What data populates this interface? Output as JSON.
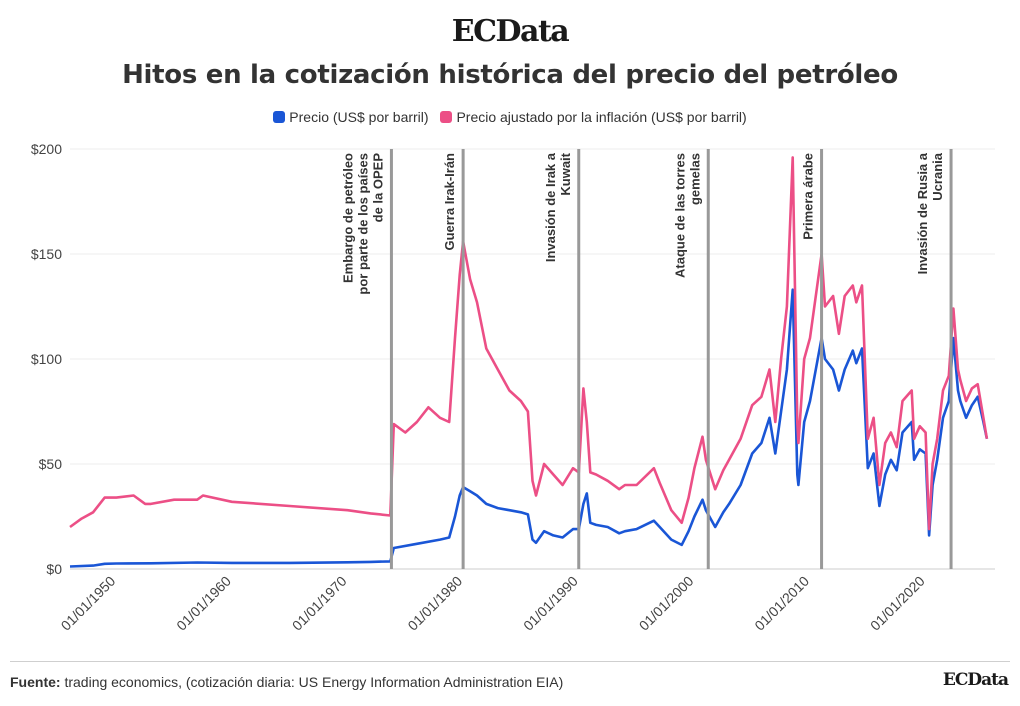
{
  "brand": {
    "logo": "ECData",
    "footer_logo": "ECData"
  },
  "title": "Hitos en la cotización histórica del precio del petróleo",
  "legend": [
    {
      "label": "Precio (US$ por barril)",
      "color": "#1a56d6"
    },
    {
      "label": "Precio ajustado por la inflación (US$ por barril)",
      "color": "#ec4f86"
    }
  ],
  "source": {
    "label": "Fuente:",
    "text": "trading economics, (cotización diaria: US Energy Information Administration EIA)"
  },
  "chart_data": {
    "type": "line",
    "xlabel": "",
    "ylabel": "",
    "xlim": [
      1946.0,
      2026.0
    ],
    "ylim": [
      0,
      200
    ],
    "grid": true,
    "legend_position": "top",
    "y_ticks": [
      0,
      50,
      100,
      150,
      200
    ],
    "y_tick_labels": [
      "$0",
      "$50",
      "$100",
      "$150",
      "$200"
    ],
    "x_ticks": [
      1950,
      1960,
      1970,
      1980,
      1990,
      2000,
      2010,
      2020
    ],
    "x_tick_labels": [
      "01/01/1950",
      "01/01/1960",
      "01/01/1970",
      "01/01/1980",
      "01/01/1990",
      "01/01/2000",
      "01/01/2010",
      "01/01/2020"
    ],
    "events": [
      {
        "x": 1973.8,
        "lines": [
          "Embargo de petróleo",
          "por parte de los países",
          "de la OPEP"
        ]
      },
      {
        "x": 1980.0,
        "lines": [
          "Guerra Irak-Irán"
        ]
      },
      {
        "x": 1990.0,
        "lines": [
          "Invasión de Irak a",
          "Kuwait"
        ]
      },
      {
        "x": 2001.2,
        "lines": [
          "Ataque de las torres",
          "gemelas"
        ]
      },
      {
        "x": 2011.0,
        "lines": [
          "Primera árabe"
        ]
      },
      {
        "x": 2022.2,
        "lines": [
          "Invasión de Rusia a",
          "Ucrania"
        ]
      }
    ],
    "series": [
      {
        "name": "Precio (US$ por barril)",
        "color": "#1a56d6",
        "x": [
          1946.0,
          1948.0,
          1949.0,
          1950.0,
          1953.0,
          1957.0,
          1960.0,
          1965.0,
          1970.0,
          1972.0,
          1973.7,
          1974.0,
          1976.0,
          1978.0,
          1978.8,
          1979.3,
          1979.7,
          1980.0,
          1980.6,
          1981.2,
          1982.0,
          1983.0,
          1984.0,
          1985.0,
          1985.6,
          1986.0,
          1986.3,
          1987.0,
          1987.8,
          1988.6,
          1989.5,
          1990.0,
          1990.4,
          1990.7,
          1991.0,
          1991.5,
          1992.5,
          1993.5,
          1994.0,
          1995.0,
          1996.5,
          1997.0,
          1998.0,
          1998.9,
          1999.5,
          2000.0,
          2000.7,
          2001.0,
          2001.8,
          2002.5,
          2003.0,
          2004.0,
          2005.0,
          2005.8,
          2006.5,
          2007.0,
          2007.5,
          2008.0,
          2008.5,
          2008.9,
          2009.0,
          2009.5,
          2010.0,
          2011.0,
          2011.3,
          2012.0,
          2012.5,
          2013.0,
          2013.7,
          2014.0,
          2014.5,
          2015.0,
          2015.5,
          2016.0,
          2016.5,
          2017.0,
          2017.5,
          2018.0,
          2018.8,
          2019.0,
          2019.5,
          2020.0,
          2020.3,
          2020.6,
          2021.0,
          2021.5,
          2022.0,
          2022.4,
          2022.8,
          2023.0,
          2023.5,
          2024.0,
          2024.5,
          2025.0,
          2025.3
        ],
        "y": [
          1.2,
          1.6,
          2.5,
          2.6,
          2.7,
          3.1,
          2.9,
          2.9,
          3.2,
          3.4,
          3.6,
          10.0,
          12.0,
          14.0,
          15.0,
          25.0,
          35.0,
          39.0,
          37.0,
          35.0,
          31.0,
          29.0,
          28.0,
          27.0,
          26.0,
          14.0,
          12.5,
          18.0,
          16.0,
          15.0,
          19.0,
          19.0,
          31.0,
          36.0,
          22.0,
          21.0,
          20.0,
          17.0,
          18.0,
          19.0,
          23.0,
          20.0,
          14.0,
          11.5,
          18.0,
          25.0,
          33.0,
          28.0,
          20.0,
          27.0,
          31.0,
          40.0,
          55.0,
          60.0,
          72.0,
          55.0,
          75.0,
          95.0,
          133.0,
          45.0,
          40.0,
          70.0,
          80.0,
          110.0,
          100.0,
          95.0,
          85.0,
          95.0,
          104.0,
          98.0,
          105.0,
          48.0,
          55.0,
          30.0,
          45.0,
          52.0,
          47.0,
          65.0,
          70.0,
          52.0,
          57.0,
          55.0,
          16.0,
          40.0,
          52.0,
          72.0,
          80.0,
          110.0,
          85.0,
          80.0,
          72.0,
          78.0,
          82.0,
          70.0,
          62.0
        ]
      },
      {
        "name": "Precio ajustado por la inflación (US$ por barril)",
        "color": "#ec4f86",
        "x": [
          1946.0,
          1947.0,
          1948.0,
          1949.0,
          1950.0,
          1951.5,
          1952.5,
          1953.0,
          1955.0,
          1957.0,
          1957.5,
          1960.0,
          1965.0,
          1970.0,
          1972.0,
          1973.7,
          1974.0,
          1975.0,
          1976.0,
          1977.0,
          1978.0,
          1978.8,
          1979.3,
          1979.7,
          1980.0,
          1980.6,
          1981.2,
          1982.0,
          1983.0,
          1984.0,
          1985.0,
          1985.6,
          1986.0,
          1986.3,
          1987.0,
          1987.8,
          1988.6,
          1989.5,
          1990.0,
          1990.4,
          1990.7,
          1991.0,
          1991.5,
          1992.5,
          1993.5,
          1994.0,
          1995.0,
          1996.5,
          1997.0,
          1998.0,
          1998.9,
          1999.5,
          2000.0,
          2000.7,
          2001.0,
          2001.8,
          2002.5,
          2003.0,
          2004.0,
          2005.0,
          2005.8,
          2006.5,
          2007.0,
          2007.5,
          2008.0,
          2008.5,
          2008.9,
          2009.0,
          2009.5,
          2010.0,
          2011.0,
          2011.3,
          2012.0,
          2012.5,
          2013.0,
          2013.7,
          2014.0,
          2014.5,
          2015.0,
          2015.5,
          2016.0,
          2016.5,
          2017.0,
          2017.5,
          2018.0,
          2018.8,
          2019.0,
          2019.5,
          2020.0,
          2020.3,
          2020.6,
          2021.0,
          2021.5,
          2022.0,
          2022.4,
          2022.8,
          2023.0,
          2023.5,
          2024.0,
          2024.5,
          2025.0,
          2025.3
        ],
        "y": [
          20.0,
          24.0,
          27.0,
          34.0,
          34.0,
          35.0,
          31.0,
          31.0,
          33.0,
          33.0,
          35.0,
          32.0,
          30.0,
          28.0,
          26.5,
          25.5,
          69.0,
          65.0,
          70.0,
          77.0,
          72.0,
          70.0,
          110.0,
          140.0,
          156.0,
          138.0,
          127.0,
          105.0,
          95.0,
          85.0,
          80.0,
          75.0,
          42.0,
          35.0,
          50.0,
          45.0,
          40.0,
          48.0,
          46.0,
          86.0,
          70.0,
          46.0,
          45.0,
          42.0,
          38.0,
          40.0,
          40.0,
          48.0,
          41.0,
          28.0,
          22.0,
          34.0,
          48.0,
          63.0,
          52.0,
          38.0,
          47.0,
          52.0,
          62.0,
          78.0,
          82.0,
          95.0,
          70.0,
          100.0,
          125.0,
          196.0,
          70.0,
          60.0,
          100.0,
          110.0,
          150.0,
          125.0,
          130.0,
          112.0,
          130.0,
          135.0,
          127.0,
          135.0,
          62.0,
          72.0,
          40.0,
          60.0,
          65.0,
          58.0,
          80.0,
          85.0,
          62.0,
          68.0,
          65.0,
          19.0,
          50.0,
          62.0,
          85.0,
          92.0,
          124.0,
          95.0,
          90.0,
          80.0,
          86.0,
          88.0,
          72.0,
          62.0
        ]
      }
    ]
  }
}
